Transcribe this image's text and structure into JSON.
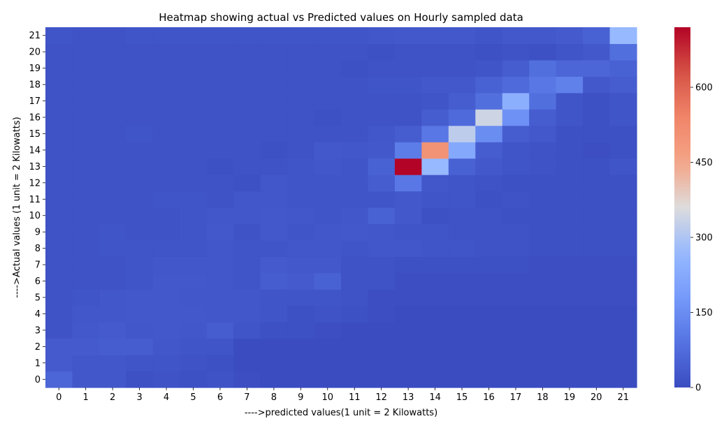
{
  "chart_data": {
    "type": "heatmap",
    "title": "Heatmap showing actual vs Predicted values on Hourly sampled data",
    "xlabel": "---->predicted values(1 unit = 2 Kilowatts)",
    "ylabel": "---->Actual values (1 unit = 2 Kilowatts)",
    "x_categories": [
      "0",
      "1",
      "2",
      "3",
      "4",
      "5",
      "6",
      "7",
      "8",
      "9",
      "10",
      "11",
      "12",
      "13",
      "14",
      "15",
      "16",
      "17",
      "18",
      "19",
      "20",
      "21"
    ],
    "y_categories": [
      "0",
      "1",
      "2",
      "3",
      "4",
      "5",
      "6",
      "7",
      "8",
      "9",
      "10",
      "11",
      "12",
      "13",
      "14",
      "15",
      "16",
      "17",
      "18",
      "19",
      "20",
      "21"
    ],
    "colormap": "coolwarm",
    "vmin": 0,
    "vmax": 720,
    "colorbar_ticks": [
      "0",
      "150",
      "300",
      "450",
      "600"
    ],
    "values": [
      [
        60,
        25,
        25,
        10,
        15,
        10,
        15,
        5,
        0,
        0,
        0,
        0,
        0,
        0,
        0,
        0,
        0,
        0,
        0,
        0,
        0,
        0
      ],
      [
        35,
        25,
        25,
        20,
        20,
        15,
        10,
        0,
        0,
        0,
        0,
        0,
        0,
        0,
        0,
        0,
        0,
        0,
        0,
        0,
        0,
        0
      ],
      [
        35,
        35,
        40,
        40,
        25,
        20,
        20,
        0,
        0,
        0,
        0,
        0,
        0,
        0,
        0,
        0,
        0,
        0,
        0,
        0,
        0,
        0
      ],
      [
        15,
        30,
        35,
        25,
        30,
        25,
        40,
        20,
        10,
        10,
        5,
        0,
        0,
        0,
        0,
        0,
        0,
        0,
        0,
        0,
        0,
        0
      ],
      [
        15,
        25,
        25,
        30,
        30,
        30,
        25,
        25,
        20,
        10,
        15,
        10,
        5,
        0,
        0,
        0,
        0,
        0,
        0,
        0,
        0,
        0
      ],
      [
        15,
        20,
        25,
        30,
        30,
        25,
        25,
        25,
        20,
        20,
        20,
        15,
        5,
        5,
        5,
        5,
        5,
        5,
        5,
        5,
        5,
        5
      ],
      [
        15,
        15,
        15,
        20,
        30,
        30,
        25,
        20,
        40,
        35,
        50,
        15,
        15,
        5,
        5,
        5,
        5,
        5,
        5,
        5,
        5,
        5
      ],
      [
        15,
        15,
        15,
        20,
        25,
        25,
        25,
        20,
        35,
        30,
        30,
        15,
        15,
        10,
        10,
        10,
        10,
        10,
        5,
        5,
        5,
        5
      ],
      [
        15,
        15,
        20,
        20,
        20,
        20,
        25,
        20,
        20,
        25,
        25,
        20,
        25,
        25,
        20,
        20,
        15,
        15,
        10,
        10,
        10,
        10
      ],
      [
        15,
        15,
        20,
        15,
        15,
        20,
        30,
        15,
        30,
        20,
        25,
        30,
        25,
        20,
        20,
        15,
        15,
        15,
        10,
        10,
        10,
        10
      ],
      [
        15,
        15,
        15,
        15,
        15,
        20,
        25,
        25,
        30,
        25,
        20,
        25,
        50,
        30,
        10,
        15,
        15,
        10,
        10,
        10,
        10,
        10
      ],
      [
        15,
        15,
        15,
        15,
        20,
        20,
        15,
        25,
        25,
        20,
        20,
        20,
        20,
        30,
        20,
        20,
        10,
        15,
        10,
        10,
        10,
        10
      ],
      [
        15,
        15,
        15,
        15,
        15,
        15,
        15,
        10,
        25,
        20,
        20,
        20,
        40,
        100,
        25,
        20,
        15,
        10,
        10,
        10,
        10,
        10
      ],
      [
        15,
        15,
        15,
        15,
        15,
        15,
        10,
        15,
        15,
        20,
        25,
        20,
        50,
        720,
        270,
        50,
        30,
        20,
        15,
        10,
        10,
        20
      ],
      [
        15,
        15,
        15,
        15,
        15,
        15,
        15,
        15,
        10,
        15,
        30,
        25,
        30,
        110,
        500,
        220,
        40,
        20,
        15,
        10,
        5,
        10
      ],
      [
        15,
        15,
        15,
        20,
        15,
        15,
        15,
        15,
        15,
        15,
        15,
        15,
        25,
        40,
        100,
        320,
        150,
        40,
        30,
        10,
        10,
        10
      ],
      [
        15,
        15,
        15,
        15,
        15,
        15,
        15,
        15,
        15,
        15,
        10,
        15,
        15,
        15,
        40,
        70,
        340,
        160,
        40,
        20,
        10,
        20
      ],
      [
        15,
        15,
        15,
        15,
        15,
        15,
        15,
        15,
        15,
        15,
        15,
        15,
        15,
        15,
        20,
        40,
        80,
        240,
        80,
        20,
        10,
        20
      ],
      [
        15,
        15,
        15,
        15,
        15,
        15,
        15,
        15,
        15,
        15,
        15,
        15,
        20,
        20,
        30,
        30,
        50,
        70,
        100,
        120,
        30,
        40
      ],
      [
        15,
        15,
        15,
        15,
        15,
        15,
        15,
        15,
        15,
        15,
        15,
        10,
        15,
        15,
        15,
        15,
        20,
        40,
        80,
        60,
        60,
        50
      ],
      [
        15,
        15,
        15,
        15,
        15,
        15,
        15,
        15,
        15,
        15,
        15,
        15,
        10,
        15,
        15,
        15,
        10,
        15,
        10,
        20,
        30,
        80
      ],
      [
        20,
        15,
        15,
        20,
        20,
        20,
        20,
        20,
        20,
        20,
        20,
        20,
        25,
        30,
        30,
        30,
        20,
        30,
        30,
        35,
        50,
        270
      ]
    ]
  }
}
